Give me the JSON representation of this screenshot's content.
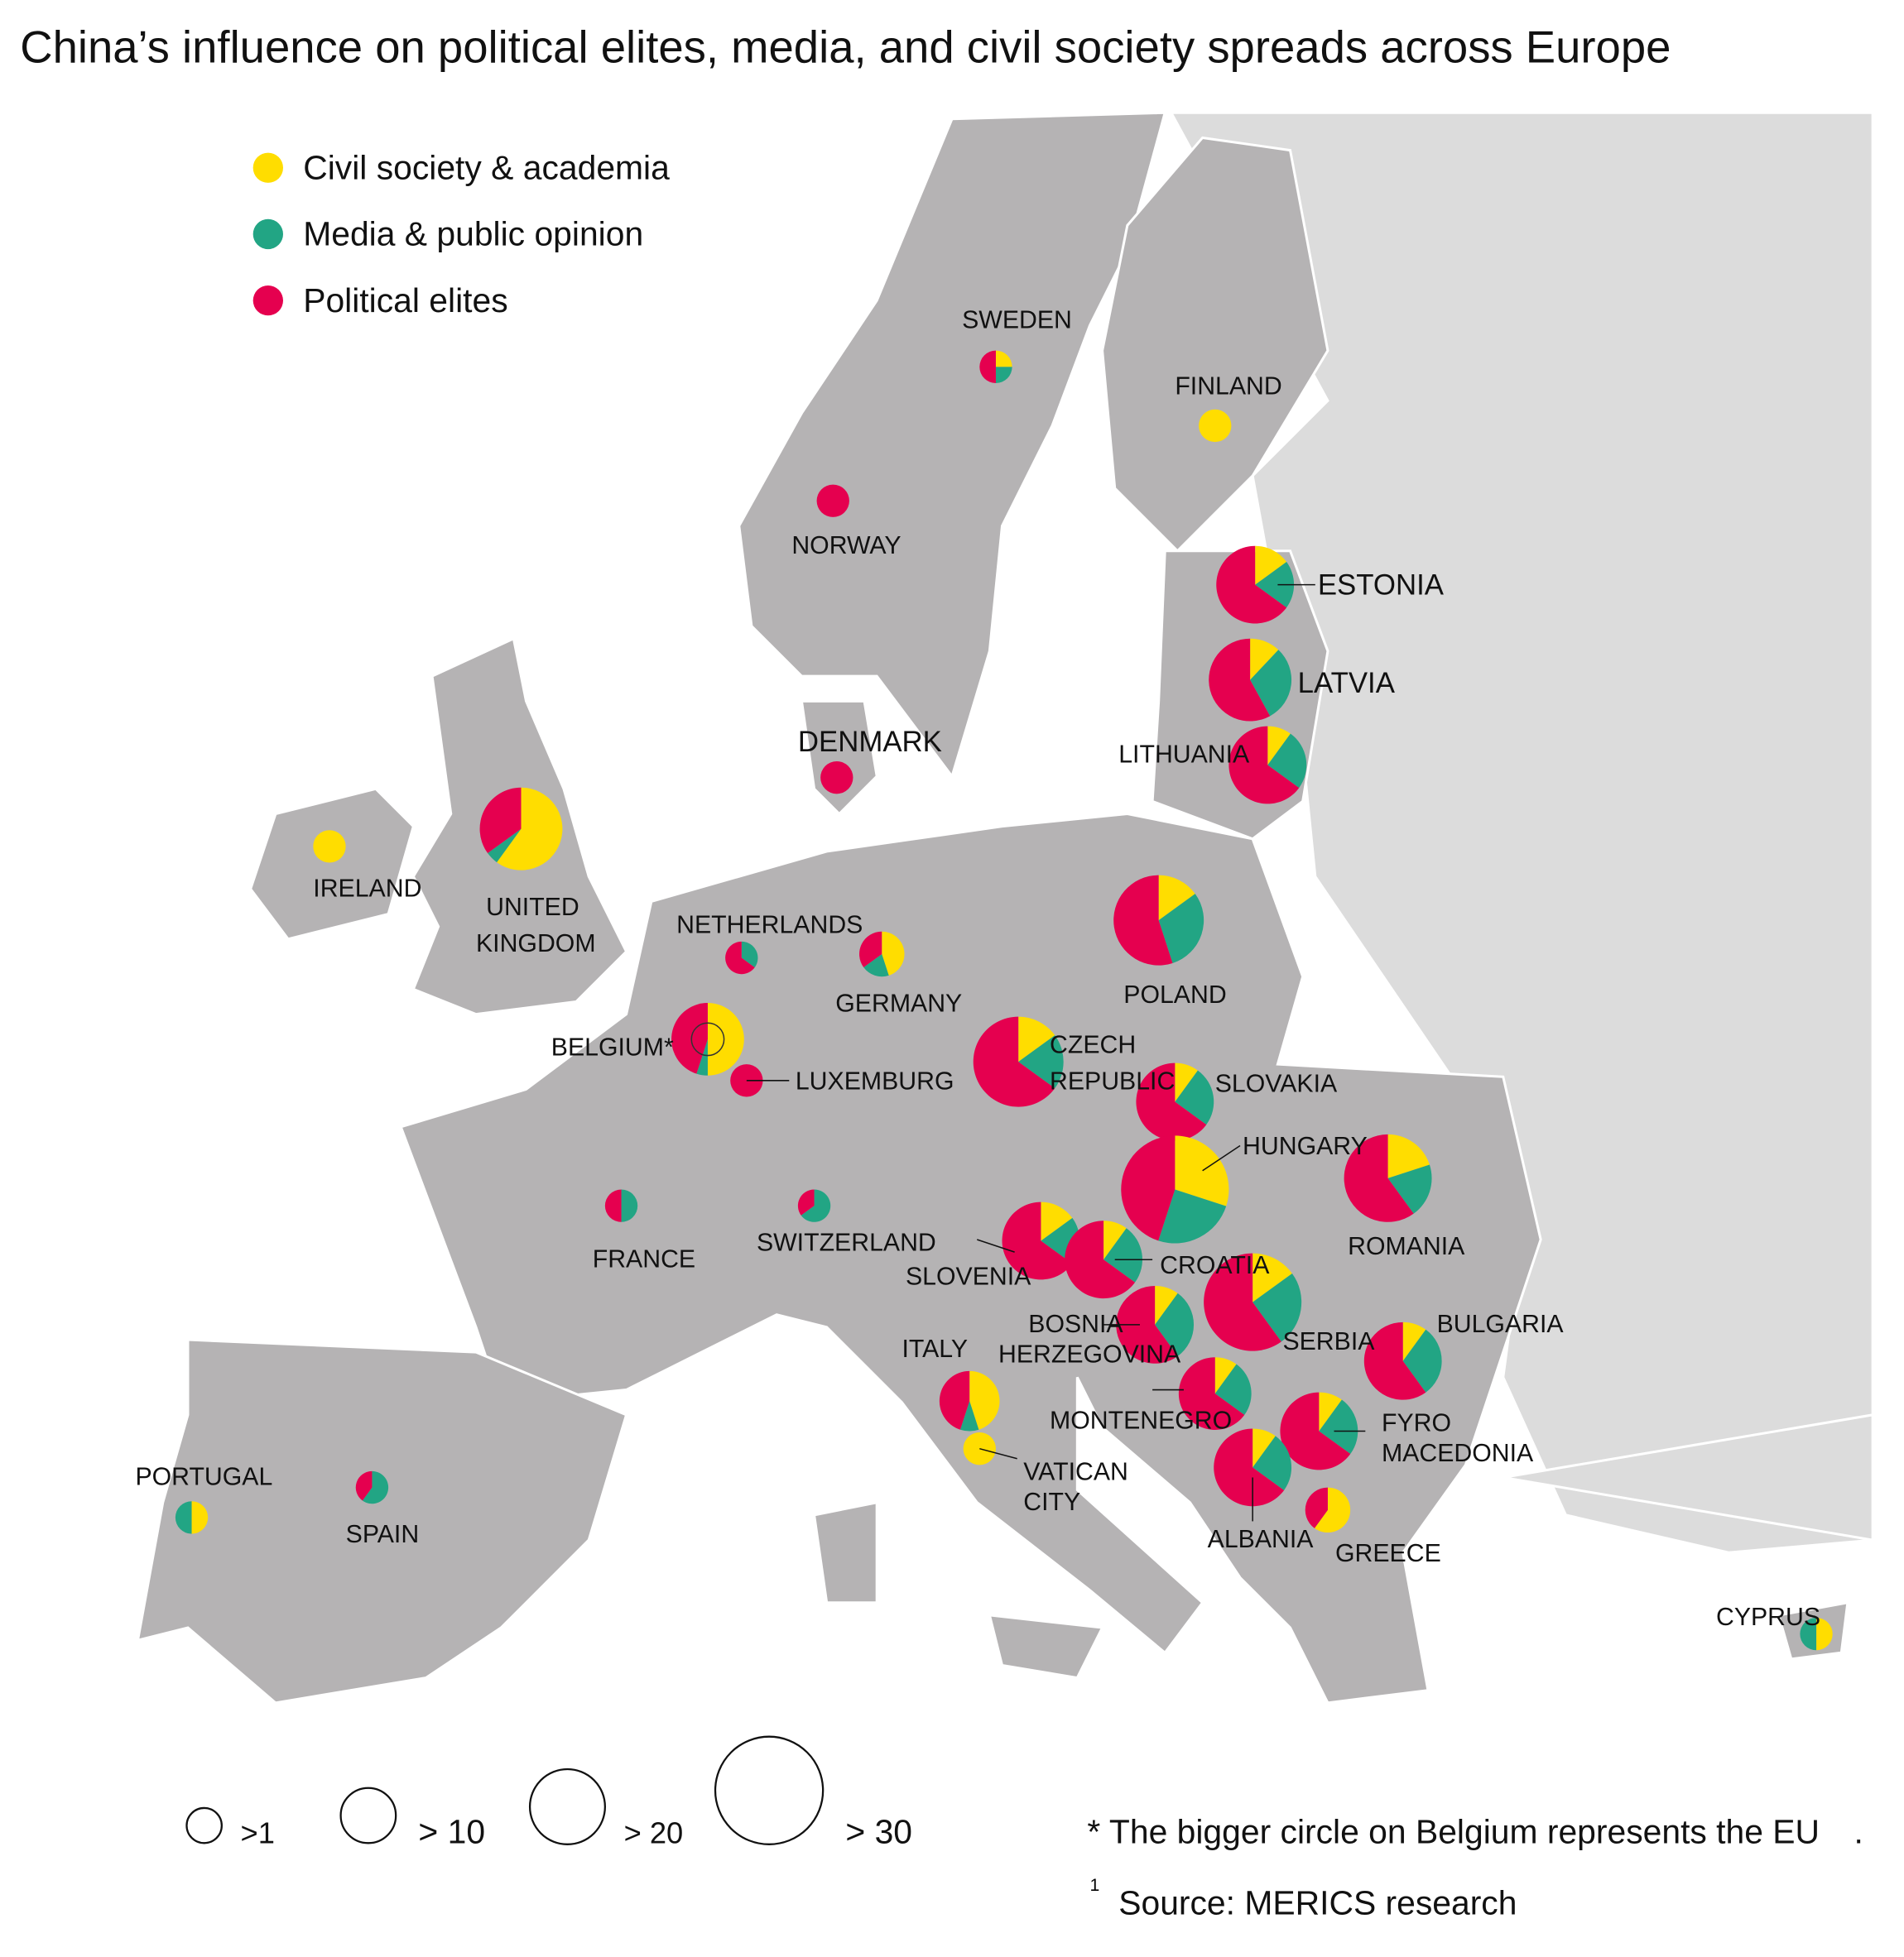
{
  "title": "China’s influence on political elites, media, and civil society spreads across Europe",
  "legend": [
    {
      "label": "Civil society & academia",
      "color": "#ffdd00"
    },
    {
      "label": "Media & public opinion",
      "color": "#22a584"
    },
    {
      "label": "Political elites",
      "color": "#e5004f"
    }
  ],
  "size_legend": [
    ">1",
    "> 10",
    "> 20",
    "> 30"
  ],
  "footnote": "* The bigger circle on Belgium represents the EU",
  "footnote_end": ".",
  "source_mark": "1",
  "source": "Source: MERICS research",
  "chart_data": {
    "type": "pie-map",
    "slice_order": [
      "civil_society",
      "media",
      "political_elites"
    ],
    "countries": [
      {
        "name": "SWEDEN",
        "size_class": ">1",
        "shares": [
          0.25,
          0.25,
          0.5
        ]
      },
      {
        "name": "FINLAND",
        "size_class": ">1",
        "shares": [
          1,
          0,
          0
        ]
      },
      {
        "name": "NORWAY",
        "size_class": ">1",
        "shares": [
          0,
          0,
          1
        ]
      },
      {
        "name": "ESTONIA",
        "size_class": "> 20",
        "shares": [
          0.15,
          0.2,
          0.65
        ]
      },
      {
        "name": "LATVIA",
        "size_class": "> 20",
        "shares": [
          0.12,
          0.3,
          0.58
        ]
      },
      {
        "name": "LITHUANIA",
        "size_class": "> 20",
        "shares": [
          0.1,
          0.25,
          0.65
        ]
      },
      {
        "name": "DENMARK",
        "size_class": ">1",
        "shares": [
          0,
          0,
          1
        ]
      },
      {
        "name": "IRELAND",
        "size_class": ">1",
        "shares": [
          1,
          0,
          0
        ]
      },
      {
        "name": "UNITED KINGDOM",
        "size_class": "> 20",
        "shares": [
          0.6,
          0.05,
          0.35
        ]
      },
      {
        "name": "NETHERLANDS",
        "size_class": ">1",
        "shares": [
          0,
          0.35,
          0.65
        ]
      },
      {
        "name": "GERMANY",
        "size_class": "> 10",
        "shares": [
          0.45,
          0.2,
          0.35
        ]
      },
      {
        "name": "POLAND",
        "size_class": "> 30",
        "shares": [
          0.15,
          0.3,
          0.55
        ]
      },
      {
        "name": "BELGIUM*",
        "size_class": "> 20",
        "shares": [
          0.5,
          0.05,
          0.45
        ]
      },
      {
        "name": "LUXEMBURG",
        "size_class": ">1",
        "shares": [
          0,
          0,
          1
        ]
      },
      {
        "name": "CZECH REPUBLIC",
        "size_class": "> 30",
        "shares": [
          0.15,
          0.2,
          0.65
        ]
      },
      {
        "name": "SLOVAKIA",
        "size_class": "> 20",
        "shares": [
          0.1,
          0.25,
          0.65
        ]
      },
      {
        "name": "HUNGARY",
        "size_class": "> 30",
        "shares": [
          0.3,
          0.25,
          0.45
        ]
      },
      {
        "name": "ROMANIA",
        "size_class": "> 30",
        "shares": [
          0.2,
          0.2,
          0.6
        ]
      },
      {
        "name": "FRANCE",
        "size_class": ">1",
        "shares": [
          0,
          0.5,
          0.5
        ]
      },
      {
        "name": "SWITZERLAND",
        "size_class": ">1",
        "shares": [
          0,
          0.65,
          0.35
        ]
      },
      {
        "name": "SLOVENIA",
        "size_class": "> 20",
        "shares": [
          0.15,
          0.2,
          0.65
        ]
      },
      {
        "name": "CROATIA",
        "size_class": "> 20",
        "shares": [
          0.1,
          0.25,
          0.65
        ]
      },
      {
        "name": "SERBIA",
        "size_class": "> 30",
        "shares": [
          0.15,
          0.25,
          0.6
        ]
      },
      {
        "name": "BOSNIA HERZEGOVINA",
        "size_class": "> 20",
        "shares": [
          0.1,
          0.3,
          0.6
        ]
      },
      {
        "name": "BULGARIA",
        "size_class": "> 20",
        "shares": [
          0.1,
          0.3,
          0.6
        ]
      },
      {
        "name": "MONTENEGRO",
        "size_class": "> 20",
        "shares": [
          0.1,
          0.25,
          0.65
        ]
      },
      {
        "name": "ITALY",
        "size_class": "> 10",
        "shares": [
          0.45,
          0.1,
          0.45
        ]
      },
      {
        "name": "VATICAN CITY",
        "size_class": ">1",
        "shares": [
          1,
          0,
          0
        ]
      },
      {
        "name": "FYRO MACEDONIA",
        "size_class": "> 20",
        "shares": [
          0.1,
          0.25,
          0.65
        ]
      },
      {
        "name": "ALBANIA",
        "size_class": "> 20",
        "shares": [
          0.1,
          0.25,
          0.65
        ]
      },
      {
        "name": "GREECE",
        "size_class": "> 10",
        "shares": [
          0.6,
          0,
          0.4
        ]
      },
      {
        "name": "PORTUGAL",
        "size_class": ">1",
        "shares": [
          0.5,
          0.5,
          0
        ]
      },
      {
        "name": "SPAIN",
        "size_class": ">1",
        "shares": [
          0,
          0.6,
          0.4
        ]
      },
      {
        "name": "CYPRUS",
        "size_class": ">1",
        "shares": [
          0.5,
          0.5,
          0
        ]
      }
    ]
  },
  "labels": {
    "sweden": "SWEDEN",
    "finland": "FINLAND",
    "norway": "NORWAY",
    "estonia": "ESTONIA",
    "latvia": "LATVIA",
    "lithuania": "LITHUANIA",
    "denmark": "DENMARK",
    "ireland": "IRELAND",
    "uk1": "UNITED",
    "uk2": "KINGDOM",
    "netherlands": "NETHERLANDS",
    "germany": "GERMANY",
    "poland": "POLAND",
    "belgium": "BELGIUM*",
    "luxemburg": "LUXEMBURG",
    "czech1": "CZECH",
    "czech2": "REPUBLIC",
    "slovakia": "SLOVAKIA",
    "hungary": "HUNGARY",
    "romania": "ROMANIA",
    "france": "FRANCE",
    "switzerland": "SWITZERLAND",
    "slovenia": "SLOVENIA",
    "croatia": "CROATIA",
    "bosnia1": "BOSNIA",
    "bosnia2": "HERZEGOVINA",
    "serbia": "SERBIA",
    "bulgaria": "BULGARIA",
    "montenegro": "MONTENEGRO",
    "italy": "ITALY",
    "vatican1": "VATICAN",
    "vatican2": "CITY",
    "fyro1": "FYRO",
    "fyro2": "MACEDONIA",
    "albania": "ALBANIA",
    "greece": "GREECE",
    "portugal": "PORTUGAL",
    "spain": "SPAIN",
    "cyprus": "CYPRUS"
  }
}
